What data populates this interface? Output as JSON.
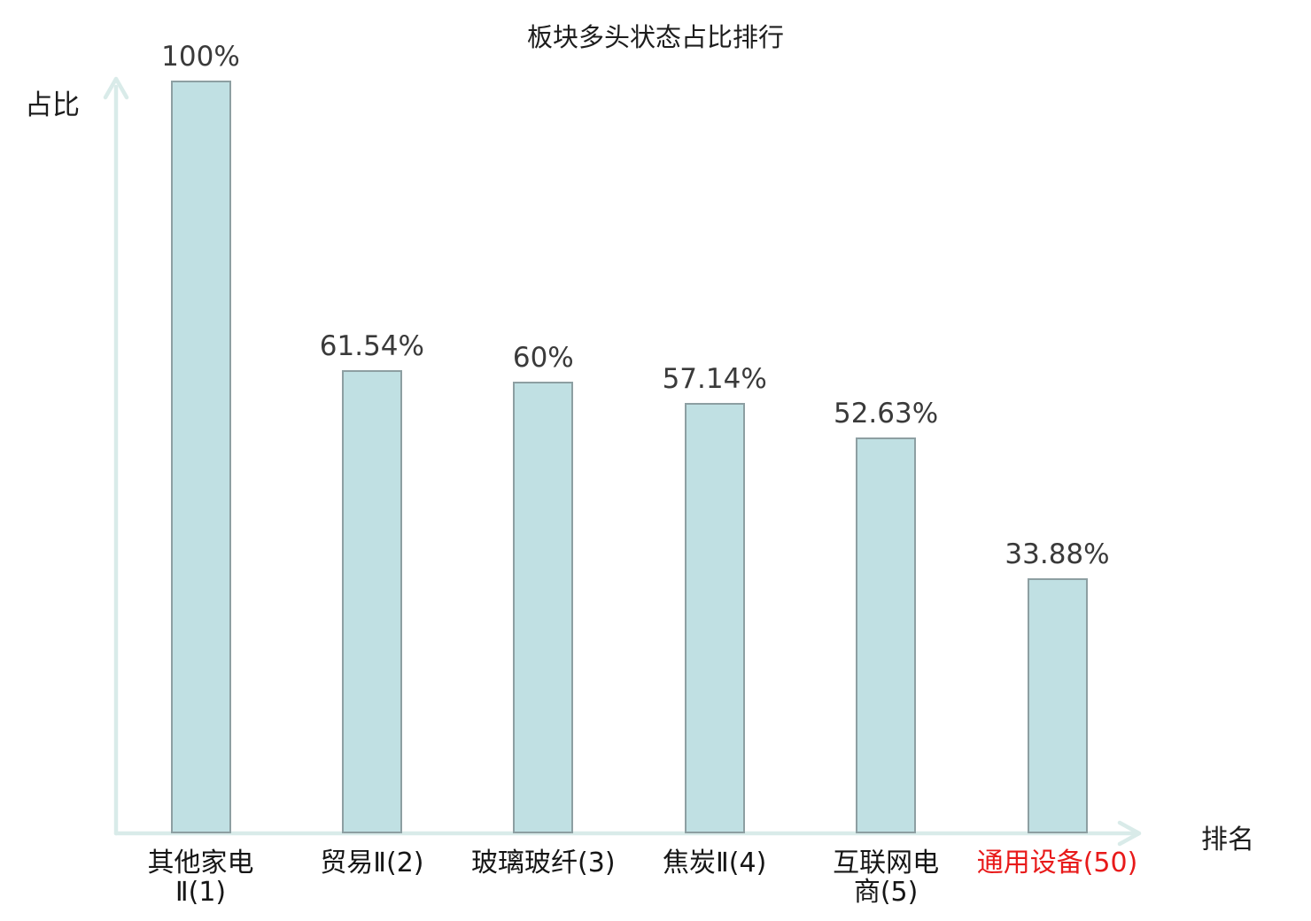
{
  "title": "板块多头状态占比排行",
  "y_axis_label": "占比",
  "x_axis_label": "排名",
  "colors": {
    "background": "#ffffff",
    "bar_fill": "#c0e0e3",
    "bar_border": "#8d9fa2",
    "axis": "#d9ebe9",
    "value_label": "#3a3a3a",
    "category_label": "#161616",
    "highlight": "#e81a1a"
  },
  "chart_data": {
    "type": "bar",
    "title": "板块多头状态占比排行",
    "xlabel": "排名",
    "ylabel": "占比",
    "ylim": [
      0,
      100
    ],
    "grid": false,
    "legend": "none",
    "categories": [
      "其他家电Ⅱ(1)",
      "贸易Ⅱ(2)",
      "玻璃玻纤(3)",
      "焦炭Ⅱ(4)",
      "互联网电商(5)",
      "通用设备(50)"
    ],
    "values": [
      100,
      61.54,
      60,
      57.14,
      52.63,
      33.88
    ],
    "bars": [
      {
        "category_lines": [
          "其他家电",
          "Ⅱ(1)"
        ],
        "value": 100,
        "value_label": "100%",
        "highlighted": false
      },
      {
        "category_lines": [
          "贸易Ⅱ(2)"
        ],
        "value": 61.54,
        "value_label": "61.54%",
        "highlighted": false
      },
      {
        "category_lines": [
          "玻璃玻纤(3)"
        ],
        "value": 60,
        "value_label": "60%",
        "highlighted": false
      },
      {
        "category_lines": [
          "焦炭Ⅱ(4)"
        ],
        "value": 57.14,
        "value_label": "57.14%",
        "highlighted": false
      },
      {
        "category_lines": [
          "互联网电",
          "商(5)"
        ],
        "value": 52.63,
        "value_label": "52.63%",
        "highlighted": false
      },
      {
        "category_lines": [
          "通用设备(50)"
        ],
        "value": 33.88,
        "value_label": "33.88%",
        "highlighted": true
      }
    ]
  }
}
